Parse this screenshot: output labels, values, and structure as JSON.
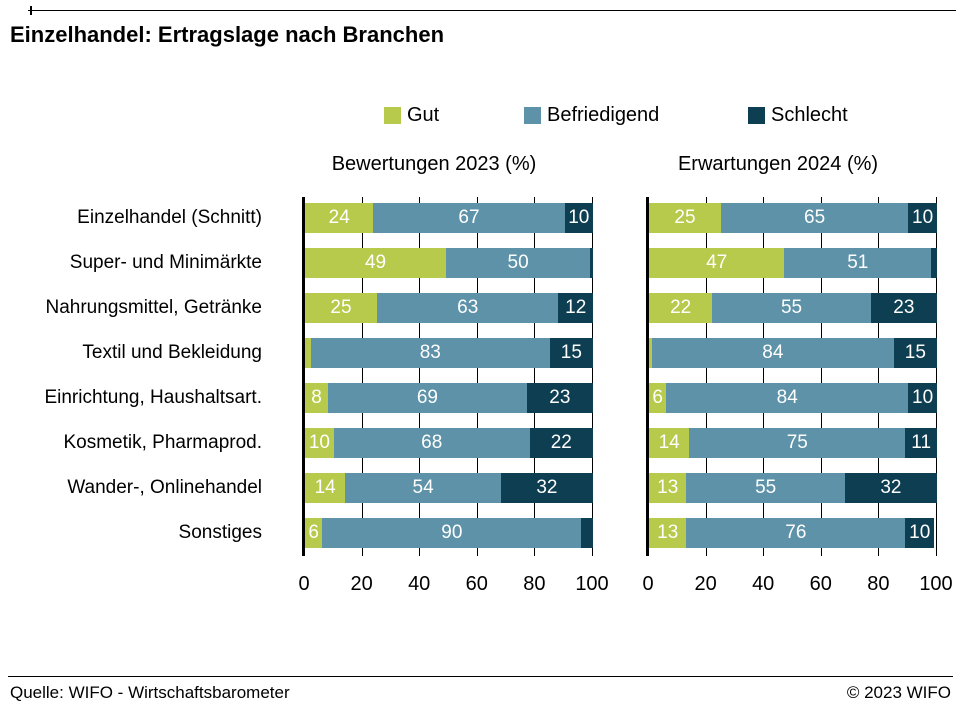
{
  "header": {
    "title": "Einzelhandel: Ertragslage nach Branchen"
  },
  "legend": [
    {
      "label": "Gut",
      "color": "#b7ca4b"
    },
    {
      "label": "Befriedigend",
      "color": "#5d92a8"
    },
    {
      "label": "Schlecht",
      "color": "#0e3e52"
    }
  ],
  "chart_data": [
    {
      "type": "bar",
      "orientation": "horizontal",
      "stacked": true,
      "title": "Bewertungen 2023 (%)",
      "categories": [
        "Einzelhandel (Schnitt)",
        "Super- und Minimärkte",
        "Nahrungsmittel, Getränke",
        "Textil und Bekleidung",
        "Einrichtung, Haushaltsart.",
        "Kosmetik, Pharmaprod.",
        "Wander-, Onlinehandel",
        "Sonstiges"
      ],
      "series": [
        {
          "name": "Gut",
          "values": [
            24,
            49,
            25,
            2,
            8,
            10,
            14,
            6
          ]
        },
        {
          "name": "Befriedigend",
          "values": [
            67,
            50,
            63,
            83,
            69,
            68,
            54,
            90
          ]
        },
        {
          "name": "Schlecht",
          "values": [
            10,
            1,
            12,
            15,
            23,
            22,
            32,
            4
          ]
        }
      ],
      "xlim": [
        0,
        100
      ],
      "x_ticks": [
        0,
        20,
        40,
        60,
        80,
        100
      ],
      "grid": true,
      "legend_position": "top"
    },
    {
      "type": "bar",
      "orientation": "horizontal",
      "stacked": true,
      "title": "Erwartungen 2024 (%)",
      "categories": [
        "Einzelhandel (Schnitt)",
        "Super- und Minimärkte",
        "Nahrungsmittel, Getränke",
        "Textil und Bekleidung",
        "Einrichtung, Haushaltsart.",
        "Kosmetik, Pharmaprod.",
        "Wander-, Onlinehandel",
        "Sonstiges"
      ],
      "series": [
        {
          "name": "Gut",
          "values": [
            25,
            47,
            22,
            1,
            6,
            14,
            13,
            13
          ]
        },
        {
          "name": "Befriedigend",
          "values": [
            65,
            51,
            55,
            84,
            84,
            75,
            55,
            76
          ]
        },
        {
          "name": "Schlecht",
          "values": [
            10,
            2,
            23,
            15,
            10,
            11,
            32,
            10
          ]
        }
      ],
      "xlim": [
        0,
        100
      ],
      "x_ticks": [
        0,
        20,
        40,
        60,
        80,
        100
      ],
      "grid": true,
      "legend_position": "top"
    }
  ],
  "style": {
    "bar_label_color": "#ffffff",
    "min_label_value": 5
  },
  "footer": {
    "source": "Quelle: WIFO - Wirtschaftsbarometer",
    "copyright": "© 2023 WIFO"
  }
}
